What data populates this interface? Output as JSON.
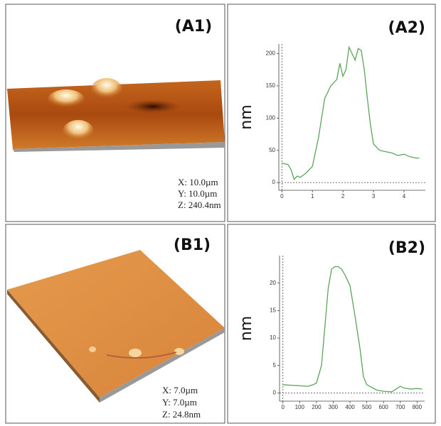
{
  "images": [
    {
      "label": "(A1)",
      "scan": [
        "X: 10.0µm",
        "Y: 10.0µm",
        "Z: 240.4nm"
      ]
    },
    {
      "label": "(B1)",
      "scan": [
        "X: 7.0µm",
        "Y: 7.0µm",
        "Z: 24.8nm"
      ]
    }
  ],
  "chart_data": [
    {
      "type": "line",
      "title": "(A2)",
      "ylabel": "nm",
      "x": [
        0,
        0.2,
        0.3,
        0.4,
        0.5,
        0.6,
        0.8,
        1.0,
        1.2,
        1.4,
        1.6,
        1.7,
        1.8,
        1.9,
        2.0,
        2.1,
        2.2,
        2.3,
        2.4,
        2.5,
        2.6,
        2.7,
        2.8,
        2.9,
        3.0,
        3.2,
        3.4,
        3.6,
        3.8,
        4.0,
        4.2,
        4.4,
        4.5
      ],
      "series": [
        {
          "color": "#5aa55a",
          "values": [
            30,
            28,
            20,
            5,
            10,
            8,
            15,
            25,
            70,
            130,
            150,
            155,
            160,
            185,
            165,
            175,
            210,
            200,
            190,
            208,
            205,
            175,
            130,
            90,
            60,
            50,
            48,
            46,
            42,
            44,
            40,
            38,
            38
          ]
        }
      ],
      "xlim": [
        -0.1,
        4.7
      ],
      "ylim": [
        -12,
        215
      ],
      "xticks": [
        0,
        1,
        2,
        3,
        4
      ],
      "yticks": [
        0,
        50,
        100,
        150,
        200
      ]
    },
    {
      "type": "line",
      "title": "(B2)",
      "ylabel": "nm",
      "x": [
        0,
        50,
        100,
        150,
        180,
        200,
        230,
        250,
        270,
        290,
        310,
        330,
        350,
        370,
        400,
        430,
        460,
        480,
        500,
        530,
        560,
        600,
        650,
        700,
        720,
        760,
        800,
        830
      ],
      "series": [
        {
          "color": "#5aa55a",
          "values": [
            1.5,
            1.4,
            1.3,
            1.2,
            1.5,
            1.8,
            5,
            12,
            19,
            22.5,
            23,
            23,
            22.5,
            21.5,
            19.5,
            14,
            8,
            3,
            1.5,
            1,
            0.5,
            0.3,
            0.2,
            1.2,
            0.9,
            0.7,
            0.8,
            0.7
          ]
        }
      ],
      "xlim": [
        -20,
        845
      ],
      "ylim": [
        -1.5,
        25
      ],
      "xticks": [
        0,
        100,
        200,
        300,
        400,
        500,
        600,
        700,
        800
      ],
      "yticks": [
        0,
        5,
        10,
        15,
        20
      ]
    }
  ]
}
